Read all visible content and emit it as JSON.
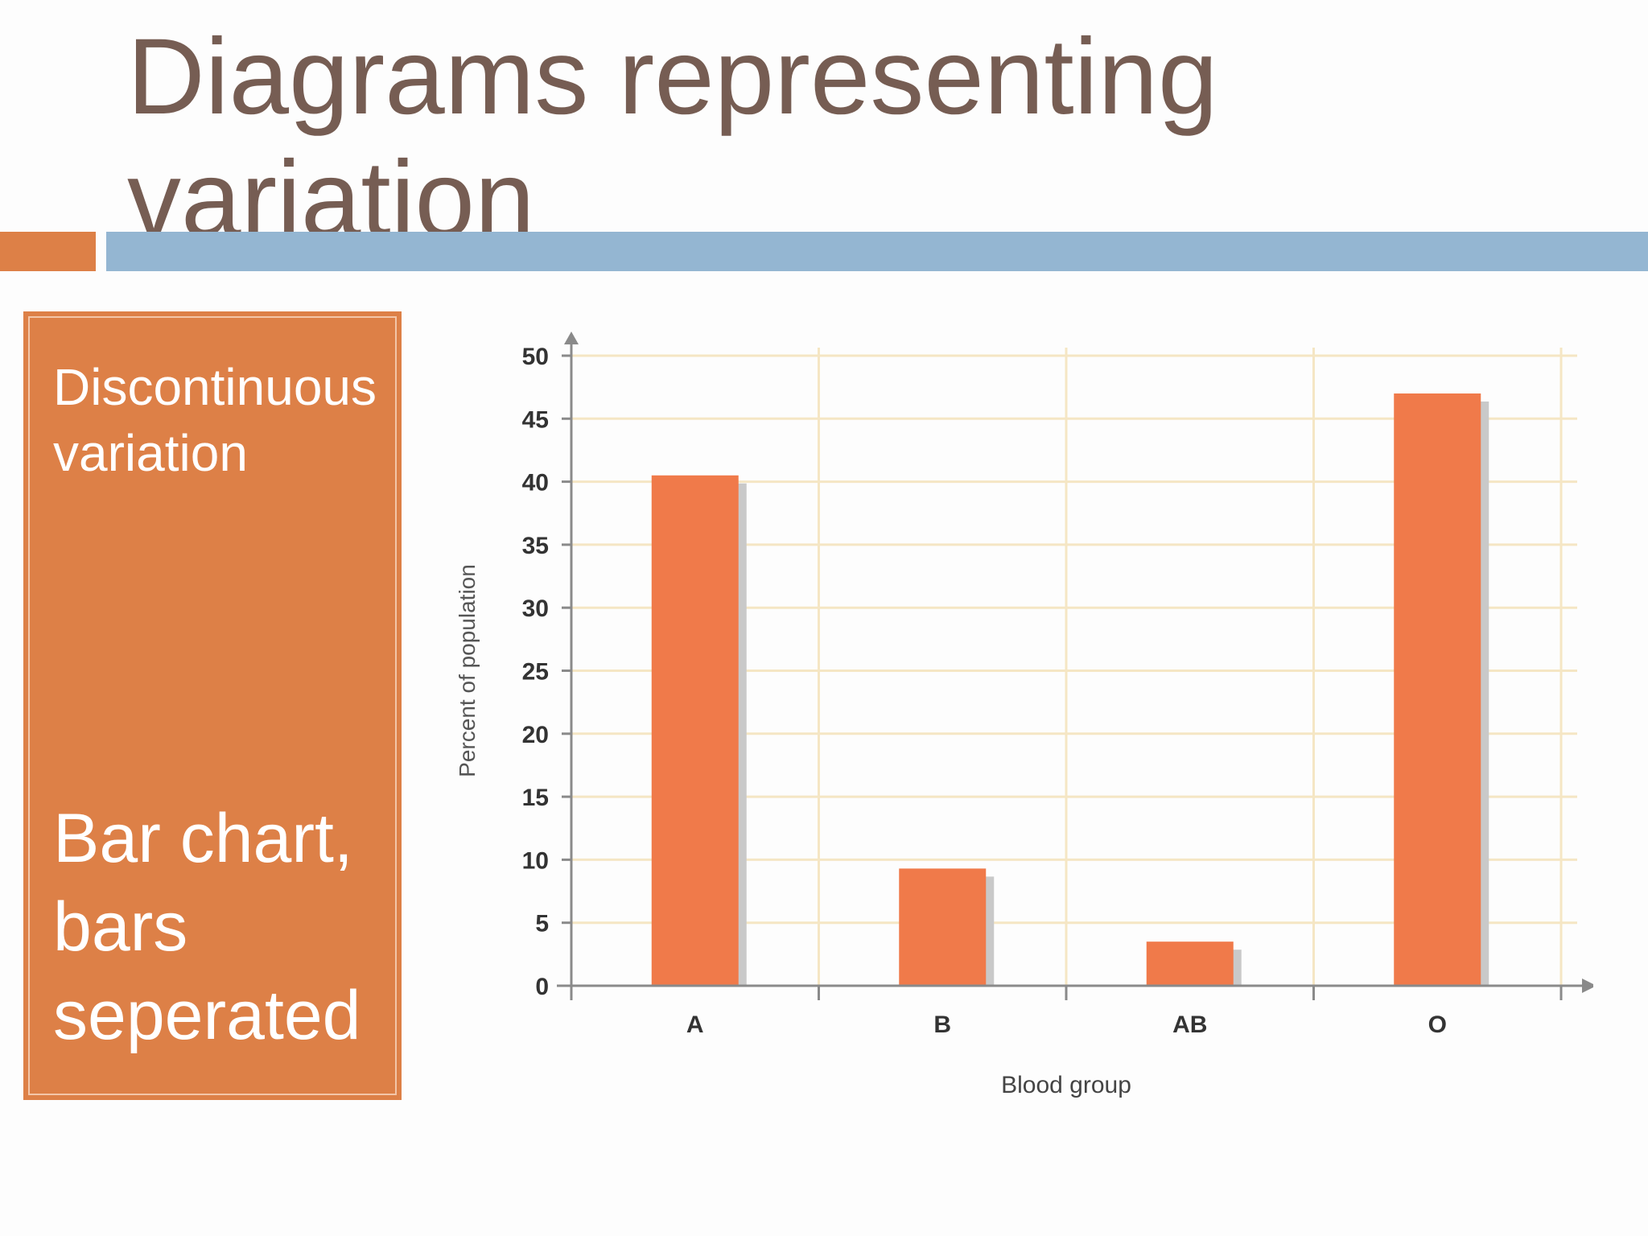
{
  "title": "Diagrams representing variation",
  "sidebar": {
    "heading": "Discontinuous variation",
    "body": "Bar chart, bars seperated"
  },
  "chart_data": {
    "type": "bar",
    "categories": [
      "A",
      "B",
      "AB",
      "O"
    ],
    "values": [
      40.5,
      9.3,
      3.5,
      47
    ],
    "xlabel": "Blood group",
    "ylabel": "Percent of population",
    "ylim": [
      0,
      50
    ],
    "yticks": [
      0,
      5,
      10,
      15,
      20,
      25,
      30,
      35,
      40,
      45,
      50
    ],
    "ytick_labels": [
      "0",
      "5",
      "10",
      "15",
      "20",
      "25",
      "30",
      "35",
      "40",
      "45",
      "50"
    ],
    "grid": true,
    "bar_color": "#f07a4a",
    "grid_color": "#f5e6c4"
  }
}
